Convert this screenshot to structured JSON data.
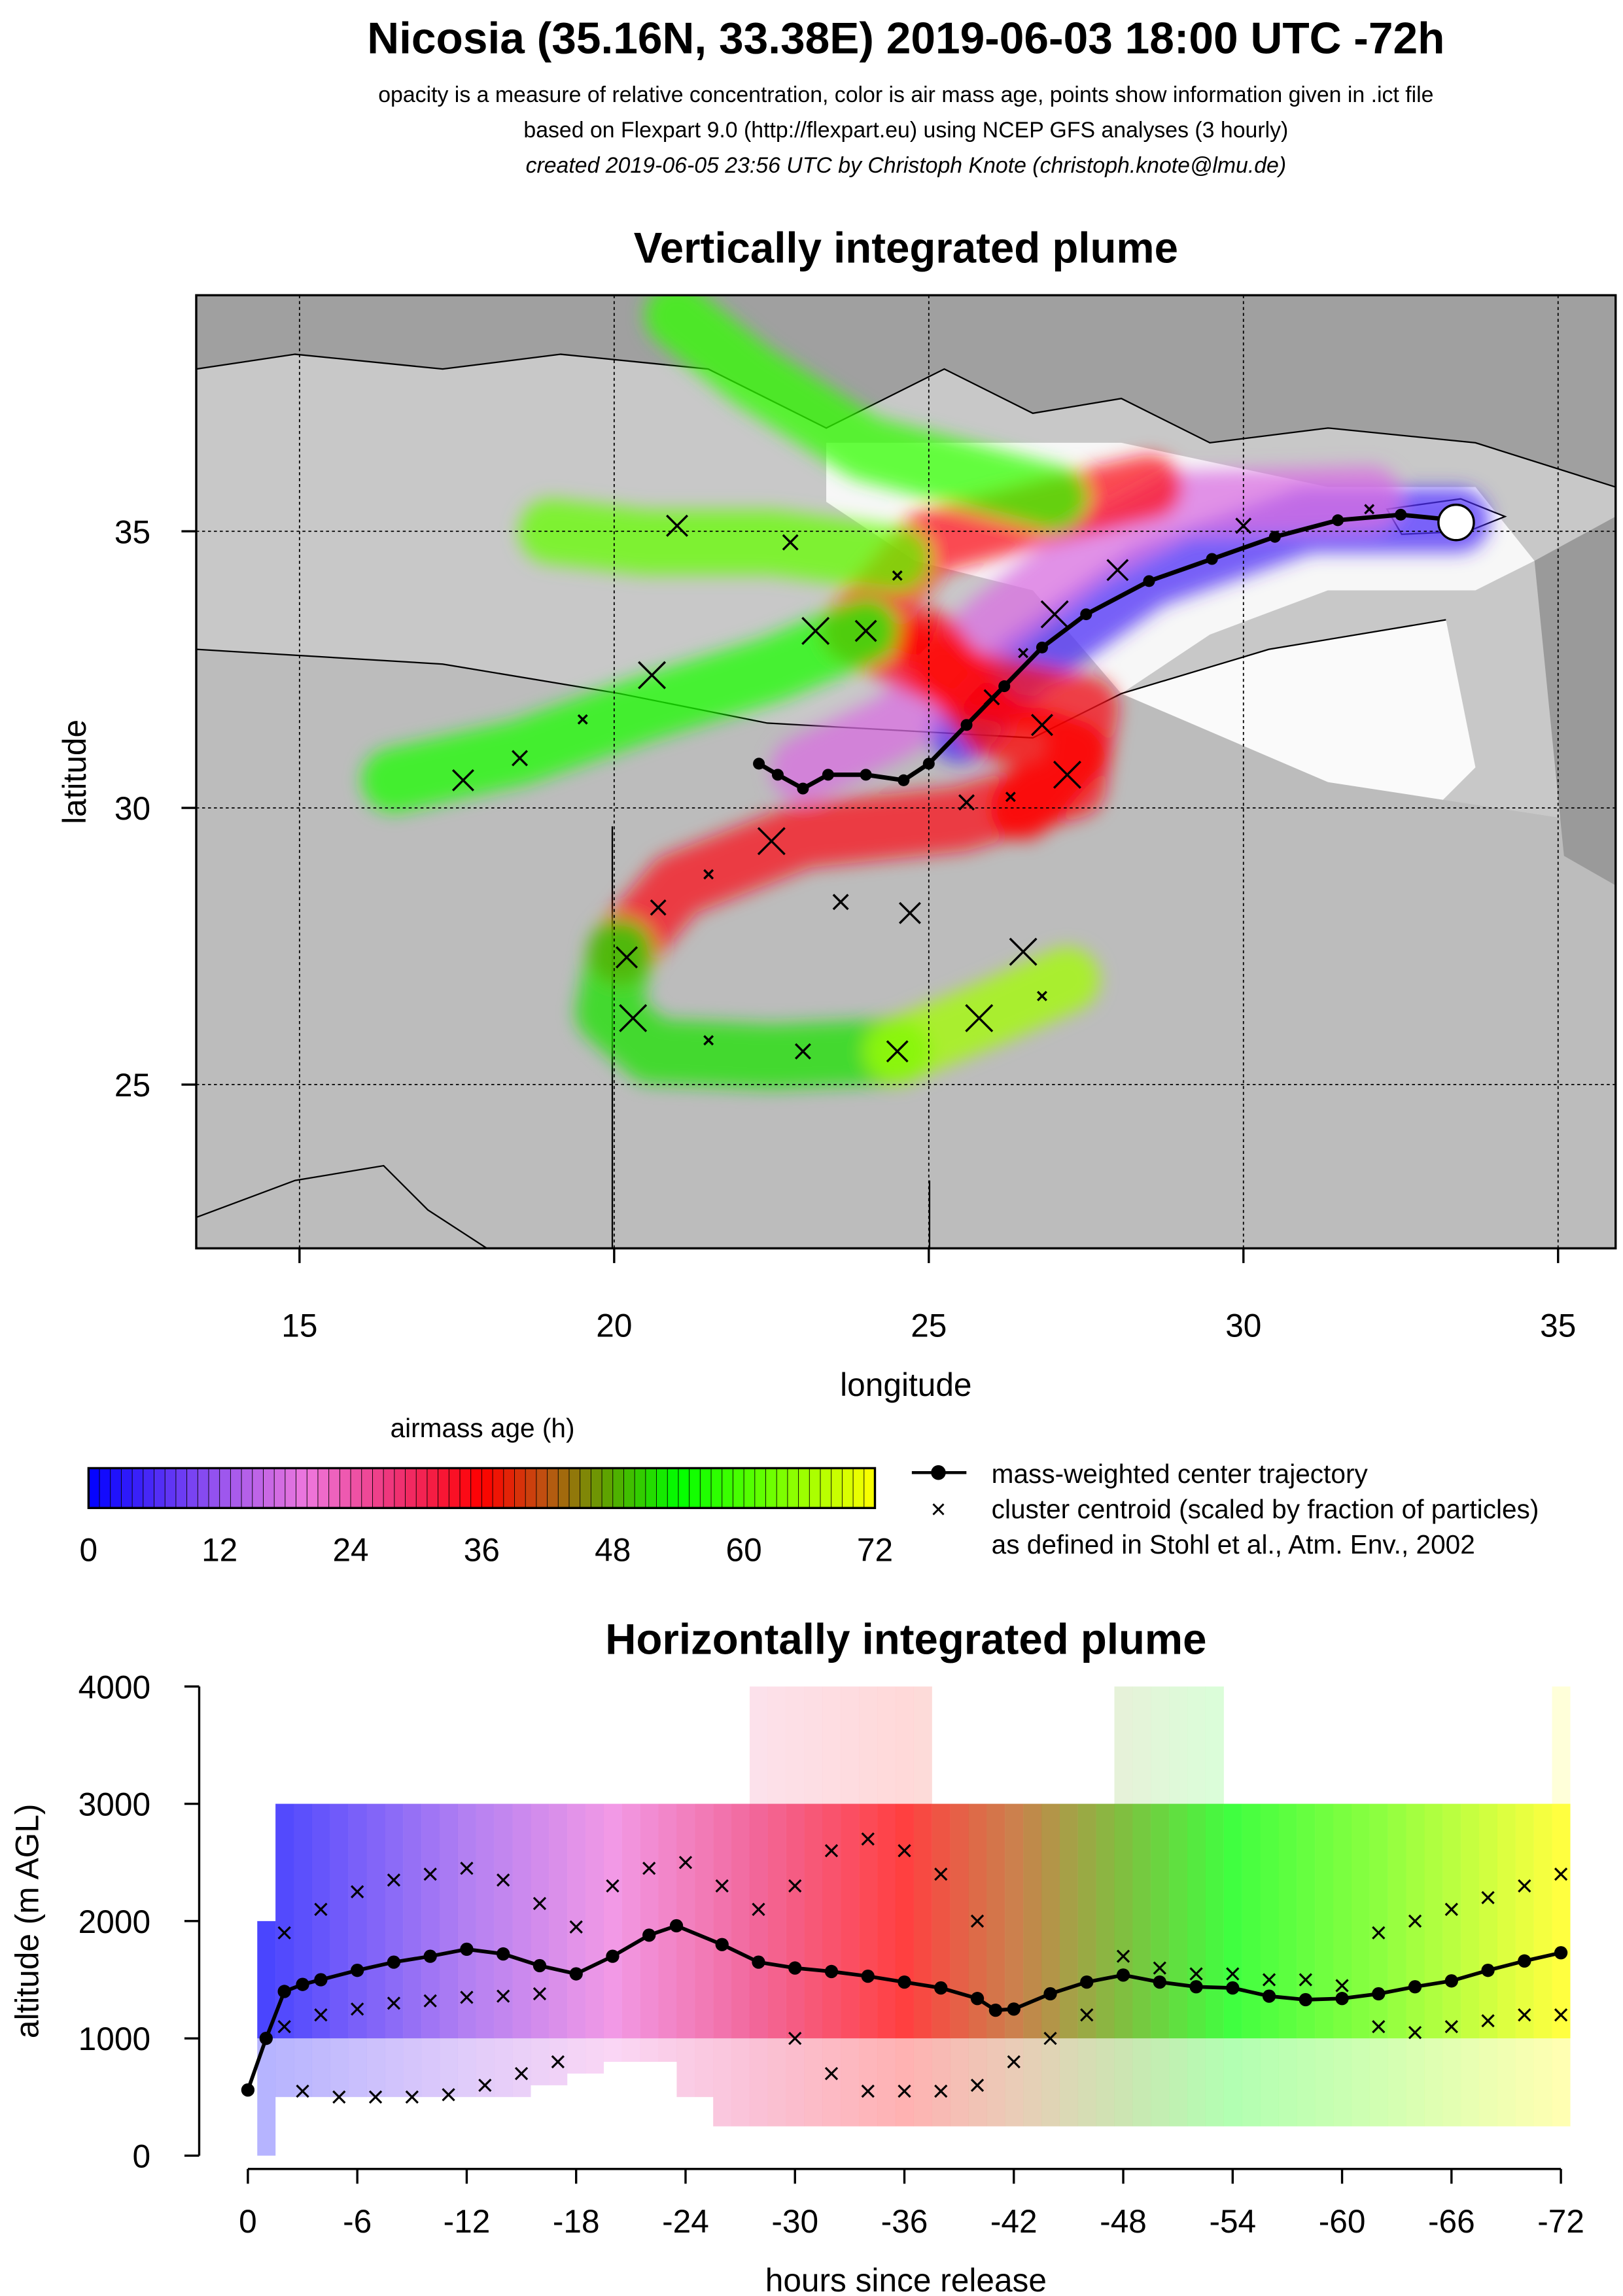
{
  "header": {
    "title": "Nicosia (35.16N, 33.38E) 2019-06-03 18:00 UTC -72h",
    "line1": "opacity is a measure of relative concentration, color is air mass age, points show information given in .ict file",
    "line2": "based on Flexpart 9.0 (http://flexpart.eu) using NCEP GFS analyses (3 hourly)",
    "line3": "created 2019-06-05 23:56 UTC by Christoph Knote (christoph.knote@lmu.de)"
  },
  "colors": {
    "age_stops": [
      [
        0,
        "#0000ff"
      ],
      [
        12,
        "#9955ee"
      ],
      [
        20,
        "#ee77dd"
      ],
      [
        28,
        "#ee3377"
      ],
      [
        36,
        "#ff0000"
      ],
      [
        42,
        "#bb5511"
      ],
      [
        48,
        "#55aa00"
      ],
      [
        54,
        "#00ff00"
      ],
      [
        62,
        "#66ff00"
      ],
      [
        72,
        "#ffff00"
      ]
    ],
    "land": "#b8b8b8",
    "sea": "#d9d9d9"
  },
  "legend": {
    "colorbar_title": "airmass age (h)",
    "colorbar_ticks": [
      "0",
      "12",
      "24",
      "36",
      "48",
      "60",
      "72"
    ],
    "trajectory_label": "mass-weighted center trajectory",
    "cluster_label": "cluster centroid (scaled by fraction of particles)",
    "reference_label": "as defined in Stohl et al., Atm. Env., 2002"
  },
  "chart_data": [
    {
      "type": "scatter",
      "title": "Vertically integrated plume",
      "xlabel": "longitude",
      "ylabel": "latitude",
      "xlim": [
        13.4,
        35.9
      ],
      "ylim": [
        21.7,
        39
      ],
      "xticks": [
        15,
        20,
        25,
        30,
        35
      ],
      "yticks": [
        25,
        30,
        35
      ],
      "grid": true,
      "release_point": {
        "lon": 33.38,
        "lat": 35.16
      },
      "center_trajectory": [
        [
          33.38,
          35.2
        ],
        [
          32.5,
          35.3
        ],
        [
          31.5,
          35.2
        ],
        [
          30.5,
          34.9
        ],
        [
          29.5,
          34.5
        ],
        [
          28.5,
          34.1
        ],
        [
          27.5,
          33.5
        ],
        [
          26.8,
          32.9
        ],
        [
          26.2,
          32.2
        ],
        [
          25.6,
          31.5
        ],
        [
          25.0,
          30.8
        ],
        [
          24.6,
          30.5
        ],
        [
          24.0,
          30.6
        ],
        [
          23.4,
          30.6
        ],
        [
          23.0,
          30.35
        ],
        [
          22.6,
          30.6
        ],
        [
          22.3,
          30.8
        ]
      ],
      "plume_segments": [
        {
          "age": 6,
          "path": [
            [
              33.4,
              35.2
            ],
            [
              31,
              35.2
            ],
            [
              28.5,
              34.2
            ],
            [
              26.5,
              32.6
            ],
            [
              25.5,
              31.4
            ]
          ]
        },
        {
          "age": 18,
          "path": [
            [
              32,
              35.6
            ],
            [
              29,
              35.5
            ],
            [
              27.5,
              34.6
            ],
            [
              26,
              33.3
            ],
            [
              24.5,
              31.5
            ],
            [
              23,
              30.7
            ]
          ]
        },
        {
          "age": 34,
          "path": [
            [
              28.5,
              35.8
            ],
            [
              27,
              35.4
            ],
            [
              25,
              34.8
            ],
            [
              23.8,
              33.2
            ],
            [
              25.5,
              32.3
            ],
            [
              27.5,
              31.8
            ],
            [
              27.3,
              30.4
            ],
            [
              25.5,
              29.8
            ],
            [
              23,
              29.5
            ],
            [
              21,
              28.6
            ],
            [
              20.1,
              27.4
            ]
          ]
        },
        {
          "age": 36,
          "path": [
            [
              25,
              33
            ],
            [
              26,
              31.5
            ],
            [
              27.3,
              31
            ],
            [
              26.5,
              30
            ]
          ]
        },
        {
          "age": 52,
          "path": [
            [
              20.1,
              27.4
            ],
            [
              19.9,
              26.3
            ],
            [
              20.6,
              25.6
            ],
            [
              22.5,
              25.5
            ],
            [
              24.5,
              25.6
            ]
          ]
        },
        {
          "age": 66,
          "path": [
            [
              24.5,
              25.6
            ],
            [
              26,
              26.3
            ],
            [
              27.2,
              26.9
            ]
          ]
        },
        {
          "age": 56,
          "path": [
            [
              24,
              33.2
            ],
            [
              22.5,
              32.5
            ],
            [
              20.5,
              31.8
            ],
            [
              18.5,
              31
            ],
            [
              16.5,
              30.5
            ]
          ]
        },
        {
          "age": 62,
          "path": [
            [
              24.5,
              34.5
            ],
            [
              22.5,
              34.8
            ],
            [
              20.5,
              34.8
            ],
            [
              19,
              35
            ]
          ]
        },
        {
          "age": 58,
          "path": [
            [
              27,
              35.6
            ],
            [
              24,
              36.5
            ],
            [
              22.2,
              37.8
            ],
            [
              21,
              38.9
            ]
          ]
        }
      ],
      "clusters": [
        [
          32,
          35.4
        ],
        [
          30,
          35.1
        ],
        [
          28,
          34.3
        ],
        [
          27,
          33.5
        ],
        [
          26.5,
          32.8
        ],
        [
          26,
          32
        ],
        [
          26.8,
          31.5
        ],
        [
          27.2,
          30.6
        ],
        [
          26.3,
          30.2
        ],
        [
          25.6,
          30.1
        ],
        [
          24,
          33.2
        ],
        [
          23.2,
          33.2
        ],
        [
          24.5,
          34.2
        ],
        [
          22.8,
          34.8
        ],
        [
          21,
          35.1
        ],
        [
          20.6,
          32.4
        ],
        [
          19.5,
          31.6
        ],
        [
          18.5,
          30.9
        ],
        [
          17.6,
          30.5
        ],
        [
          22.5,
          29.4
        ],
        [
          21.5,
          28.8
        ],
        [
          20.7,
          28.2
        ],
        [
          20.2,
          27.3
        ],
        [
          20.3,
          26.2
        ],
        [
          21.5,
          25.8
        ],
        [
          23,
          25.6
        ],
        [
          24.5,
          25.6
        ],
        [
          25.8,
          26.2
        ],
        [
          26.8,
          26.6
        ],
        [
          23.6,
          28.3
        ],
        [
          24.7,
          28.1
        ],
        [
          26.5,
          27.4
        ]
      ]
    },
    {
      "type": "line",
      "title": "Horizontally integrated plume",
      "xlabel": "hours since release",
      "ylabel": "altitude (m AGL)",
      "xlim": [
        0,
        -72
      ],
      "ylim": [
        0,
        4000
      ],
      "xticks": [
        "0",
        "-6",
        "-12",
        "-18",
        "-24",
        "-30",
        "-36",
        "-42",
        "-48",
        "-54",
        "-60",
        "-66",
        "-72"
      ],
      "yticks": [
        "0",
        "1000",
        "2000",
        "3000",
        "4000"
      ],
      "center_trajectory": {
        "hours": [
          0,
          -1,
          -2,
          -3,
          -4,
          -6,
          -8,
          -10,
          -12,
          -14,
          -16,
          -18,
          -20,
          -22,
          -23.5,
          -26,
          -28,
          -30,
          -32,
          -34,
          -36,
          -38,
          -40,
          -41,
          -42,
          -44,
          -46,
          -48,
          -50,
          -52,
          -54,
          -56,
          -58,
          -60,
          -62,
          -64,
          -66,
          -68,
          -70,
          -72
        ],
        "altitude": [
          560,
          1000,
          1400,
          1460,
          1500,
          1580,
          1650,
          1700,
          1760,
          1720,
          1620,
          1550,
          1700,
          1880,
          1960,
          1800,
          1650,
          1600,
          1570,
          1530,
          1480,
          1430,
          1340,
          1240,
          1250,
          1380,
          1480,
          1540,
          1480,
          1440,
          1430,
          1360,
          1330,
          1340,
          1380,
          1440,
          1490,
          1580,
          1660,
          1730
        ]
      },
      "cluster_tracks": [
        {
          "hours": [
            2,
            4,
            6,
            8,
            10,
            12,
            14,
            16,
            18
          ],
          "altitude": [
            1900,
            2100,
            2250,
            2350,
            2400,
            2450,
            2350,
            2150,
            1950
          ]
        },
        {
          "hours": [
            2,
            4,
            6,
            8,
            10,
            12,
            14,
            16
          ],
          "altitude": [
            1100,
            1200,
            1250,
            1300,
            1320,
            1350,
            1360,
            1380
          ]
        },
        {
          "hours": [
            3,
            5,
            7,
            9,
            11,
            13,
            15,
            17
          ],
          "altitude": [
            550,
            500,
            500,
            500,
            520,
            600,
            700,
            800
          ]
        },
        {
          "hours": [
            20,
            22,
            24,
            26,
            28,
            30,
            32,
            34,
            36,
            38,
            40
          ],
          "altitude": [
            2300,
            2450,
            2500,
            2300,
            2100,
            2300,
            2600,
            2700,
            2600,
            2400,
            2000
          ]
        },
        {
          "hours": [
            30,
            32,
            34,
            36,
            38,
            40,
            42,
            44,
            46
          ],
          "altitude": [
            1000,
            700,
            550,
            550,
            550,
            600,
            800,
            1000,
            1200
          ]
        },
        {
          "hours": [
            48,
            50,
            52,
            54,
            56,
            58,
            60,
            62,
            64,
            66,
            68,
            70,
            72
          ],
          "altitude": [
            1700,
            1600,
            1550,
            1550,
            1500,
            1500,
            1450,
            1100,
            1050,
            1100,
            1150,
            1200,
            1200
          ]
        },
        {
          "hours": [
            62,
            64,
            66,
            68,
            70,
            72
          ],
          "altitude": [
            1900,
            2000,
            2100,
            2200,
            2300,
            2400
          ]
        }
      ],
      "plume_columns": {
        "hours": [
          1,
          2,
          4,
          6,
          8,
          10,
          12,
          14,
          16,
          18,
          20,
          22,
          24,
          26,
          28,
          30,
          32,
          34,
          36,
          38,
          40,
          42,
          44,
          46,
          48,
          50,
          52,
          54,
          56,
          58,
          60,
          62,
          64,
          66,
          68,
          70,
          72
        ],
        "bottom": [
          0,
          500,
          500,
          500,
          500,
          500,
          500,
          500,
          600,
          700,
          800,
          800,
          500,
          250,
          250,
          250,
          250,
          250,
          250,
          250,
          250,
          250,
          250,
          250,
          250,
          250,
          250,
          250,
          250,
          250,
          250,
          250,
          250,
          250,
          250,
          250,
          250
        ],
        "top": [
          2000,
          3000,
          3000,
          3000,
          3000,
          3000,
          3000,
          3000,
          3000,
          3000,
          3000,
          3000,
          3000,
          3000,
          4000,
          4000,
          4000,
          4000,
          4000,
          3000,
          3000,
          3000,
          3000,
          3000,
          4000,
          4000,
          4000,
          3000,
          3000,
          3000,
          3000,
          3000,
          3000,
          3000,
          3000,
          3000,
          4000
        ]
      }
    }
  ]
}
